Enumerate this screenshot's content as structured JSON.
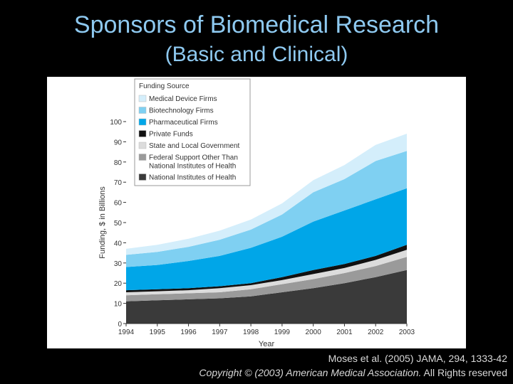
{
  "slide": {
    "title_line1": "Sponsors of Biomedical Research",
    "title_line2": "(Basic and Clinical)",
    "citation_line1": "Moses et al. (2005) JAMA, 294, 1333-42",
    "citation_line2_italic": "Copyright © (2003) American Medical Association.",
    "citation_line2_rest": " All Rights reserved"
  },
  "chart_data": {
    "type": "area",
    "stacked": true,
    "title": "",
    "xlabel": "Year",
    "ylabel": "Funding, $ in Billions",
    "x": [
      1994,
      1995,
      1996,
      1997,
      1998,
      1999,
      2000,
      2001,
      2002,
      2003
    ],
    "xticks": [
      "1994",
      "1995",
      "1996",
      "1997",
      "1998",
      "1999",
      "2000",
      "2001",
      "2002",
      "2003"
    ],
    "ylim": [
      0,
      100
    ],
    "yticks": [
      "0",
      "10",
      "20",
      "30",
      "40",
      "50",
      "60",
      "70",
      "80",
      "90",
      "100"
    ],
    "legend_title": "Funding Source",
    "legend_position": "top-left",
    "series": [
      {
        "name": "National Institutes of Health",
        "color": "#3a3a3a",
        "values": [
          11.0,
          11.5,
          12.0,
          12.5,
          13.5,
          15.5,
          17.5,
          20.0,
          23.0,
          26.5
        ]
      },
      {
        "name": "Federal Support Other Than National Institutes of Health",
        "color": "#9a9a9a",
        "values": [
          3.0,
          3.0,
          3.0,
          3.0,
          3.5,
          4.0,
          4.5,
          5.0,
          5.5,
          6.5
        ]
      },
      {
        "name": "State and Local Government",
        "color": "#dcdcdc",
        "values": [
          1.5,
          1.5,
          1.5,
          2.0,
          2.0,
          2.0,
          2.5,
          2.5,
          3.0,
          3.5
        ]
      },
      {
        "name": "Private Funds",
        "color": "#111111",
        "values": [
          1.0,
          1.0,
          1.0,
          1.0,
          1.0,
          1.5,
          2.0,
          2.0,
          2.0,
          2.5
        ]
      },
      {
        "name": "Pharmaceutical Firms",
        "color": "#00a6e8",
        "values": [
          11.5,
          12.0,
          13.5,
          15.0,
          17.5,
          20.0,
          24.0,
          26.5,
          28.0,
          28.0
        ]
      },
      {
        "name": "Biotechnology Firms",
        "color": "#7fd0f2",
        "values": [
          6.0,
          6.5,
          7.0,
          8.0,
          9.0,
          11.0,
          14.5,
          15.5,
          19.0,
          18.5
        ]
      },
      {
        "name": "Medical Device Firms",
        "color": "#d4eefb",
        "values": [
          3.0,
          3.5,
          4.0,
          4.5,
          5.0,
          5.5,
          6.0,
          7.0,
          8.0,
          8.5
        ]
      }
    ]
  }
}
